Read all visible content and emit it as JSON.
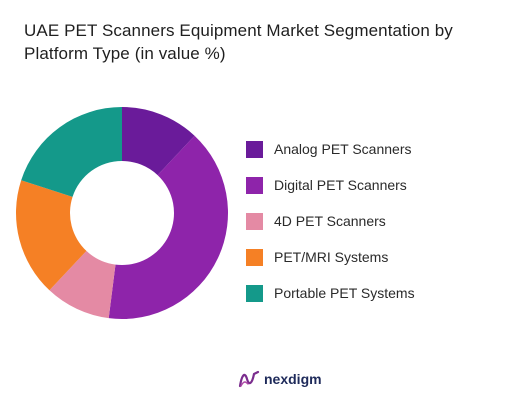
{
  "title": "UAE PET Scanners Equipment Market Segmentation by Platform Type (in value %)",
  "brand": {
    "name": "nexdigm",
    "icon": "nexdigm-logo-icon"
  },
  "chart_data": {
    "type": "pie",
    "donut": true,
    "title": "UAE PET Scanners Equipment Market Segmentation by Platform Type (in value %)",
    "legend_position": "right",
    "categories": [
      "Analog PET Scanners",
      "Digital PET Scanners",
      "4D PET Scanners",
      "PET/MRI Systems",
      "Portable PET Systems"
    ],
    "values": [
      12,
      40,
      10,
      18,
      20
    ],
    "colors": [
      "#6a1b9a",
      "#8e24aa",
      "#e48aa4",
      "#f58025",
      "#14998a"
    ]
  }
}
